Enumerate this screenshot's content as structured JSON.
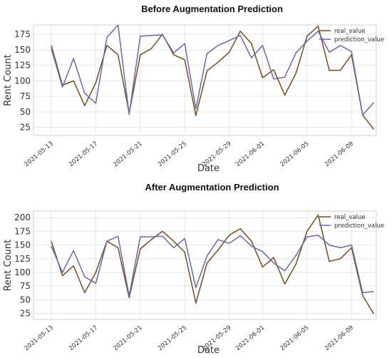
{
  "chart_data": [
    {
      "type": "line",
      "title": "Before Augmentation Prediction",
      "xlabel": "Date",
      "ylabel": "Rent Count",
      "ylim": [
        12,
        190
      ],
      "yticks": [
        25,
        50,
        75,
        100,
        125,
        150,
        175
      ],
      "x_tick_labels": [
        "2021-05-13",
        "2021-05-17",
        "2021-05-21",
        "2021-05-25",
        "2021-05-29",
        "2021-06-01",
        "2021-06-05",
        "2021-06-09"
      ],
      "x_tick_positions": [
        0,
        4,
        8,
        12,
        16,
        19,
        23,
        27
      ],
      "legend": "top-right",
      "grid": true,
      "series": [
        {
          "name": "real_value",
          "color": "#7a4a1e",
          "values": [
            157,
            93,
            100,
            60,
            97,
            157,
            142,
            48,
            142,
            152,
            175,
            142,
            134,
            44,
            116,
            130,
            146,
            180,
            160,
            105,
            118,
            77,
            112,
            172,
            188,
            117,
            117,
            142,
            45,
            22
          ]
        },
        {
          "name": "prediction_value",
          "color": "#6b66b0",
          "values": [
            152,
            90,
            136,
            80,
            64,
            170,
            190,
            46,
            172,
            173,
            174,
            145,
            160,
            55,
            144,
            157,
            165,
            173,
            137,
            157,
            103,
            106,
            145,
            164,
            180,
            146,
            157,
            147,
            45,
            65
          ]
        }
      ]
    },
    {
      "type": "line",
      "title": "After Augmentation Prediction",
      "xlabel": "Date",
      "ylabel": "Rent Count",
      "ylim": [
        14,
        212
      ],
      "yticks": [
        25,
        50,
        75,
        100,
        125,
        150,
        175,
        200
      ],
      "x_tick_labels": [
        "2021-05-13",
        "2021-05-17",
        "2021-05-21",
        "2021-05-25",
        "2021-05-29",
        "2021-06-01",
        "2021-06-05",
        "2021-06-09"
      ],
      "x_tick_positions": [
        0,
        4,
        8,
        12,
        16,
        19,
        23,
        27
      ],
      "legend": "top-right",
      "grid": true,
      "series": [
        {
          "name": "real_value",
          "color": "#7a4a1e",
          "values": [
            157,
            94,
            112,
            63,
            100,
            157,
            145,
            54,
            143,
            160,
            175,
            157,
            137,
            44,
            117,
            141,
            168,
            180,
            157,
            110,
            127,
            79,
            115,
            175,
            205,
            120,
            125,
            145,
            58,
            24
          ]
        },
        {
          "name": "prediction_value",
          "color": "#6b66b0",
          "values": [
            148,
            100,
            140,
            92,
            80,
            157,
            166,
            57,
            165,
            165,
            166,
            145,
            162,
            72,
            130,
            160,
            153,
            167,
            148,
            138,
            117,
            103,
            131,
            165,
            168,
            150,
            145,
            150,
            63,
            65
          ]
        }
      ]
    }
  ]
}
